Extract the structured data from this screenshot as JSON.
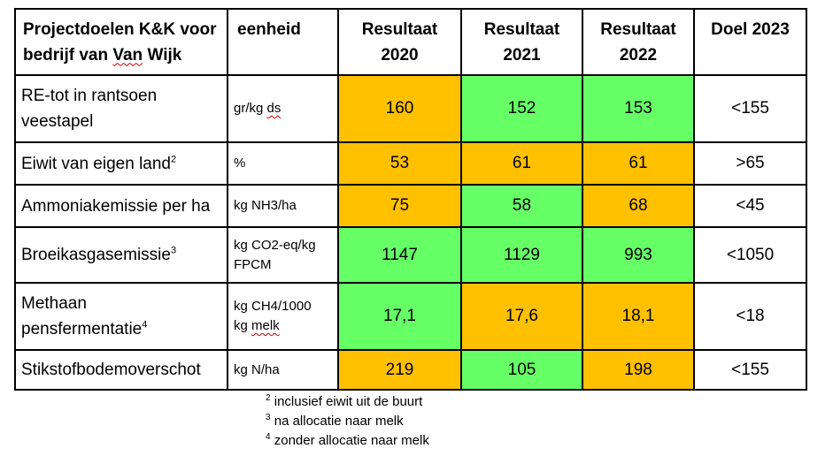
{
  "header": {
    "goal_line1": "Projectdoelen K&K voor",
    "goal_line2_pre": "bedrijf van ",
    "goal_line2_squig": "Van",
    "goal_line2_post": " Wijk",
    "unit": "eenheid",
    "y2020_l1": "Resultaat",
    "y2020_l2": "2020",
    "y2021_l1": "Resultaat",
    "y2021_l2": "2021",
    "y2022_l1": "Resultaat",
    "y2022_l2": "2022",
    "target": "Doel 2023"
  },
  "rows": [
    {
      "name": "RE-tot in rantsoen veestapel",
      "unit_pre": "gr/kg ",
      "unit_squig": "ds",
      "v2020": "160",
      "v2021": "152",
      "v2022": "153",
      "target": "<155",
      "colors": [
        "orange",
        "green",
        "green"
      ]
    },
    {
      "name": "Eiwit van eigen land",
      "sup": "2",
      "unit": "%",
      "v2020": "53",
      "v2021": "61",
      "v2022": "61",
      "target": ">65",
      "colors": [
        "orange",
        "orange",
        "orange"
      ]
    },
    {
      "name": "Ammoniakemissie per ha",
      "unit": "kg NH3/ha",
      "v2020": "75",
      "v2021": "58",
      "v2022": "68",
      "target": "<45",
      "colors": [
        "orange",
        "green",
        "orange"
      ]
    },
    {
      "name": "Broeikasgasemissie",
      "sup": "3",
      "unit_l1": "kg CO2-eq/kg",
      "unit_l2": "FPCM",
      "v2020": "1147",
      "v2021": "1129",
      "v2022": "993",
      "target": "<1050",
      "colors": [
        "green",
        "green",
        "green"
      ]
    },
    {
      "name_l1": "Methaan",
      "name_l2": "pensfermentatie",
      "sup": "4",
      "unit_l1": "kg CH4/1000",
      "unit_l2_pre": "kg ",
      "unit_l2_squig": "melk",
      "v2020": "17,1",
      "v2021": "17,6",
      "v2022": "18,1",
      "target": "<18",
      "colors": [
        "green",
        "orange",
        "orange"
      ]
    },
    {
      "name": "Stikstofbodemoverschot",
      "unit": "kg N/ha",
      "v2020": "219",
      "v2021": "105",
      "v2022": "198",
      "target": "<155",
      "colors": [
        "orange",
        "green",
        "orange"
      ]
    }
  ],
  "footnotes": [
    {
      "num": "2",
      "text": " inclusief eiwit uit de buurt"
    },
    {
      "num": "3",
      "text": " na allocatie naar melk"
    },
    {
      "num": "4",
      "text": " zonder allocatie naar melk"
    }
  ],
  "colors": {
    "orange": "#ffc000",
    "green": "#66ff66"
  }
}
